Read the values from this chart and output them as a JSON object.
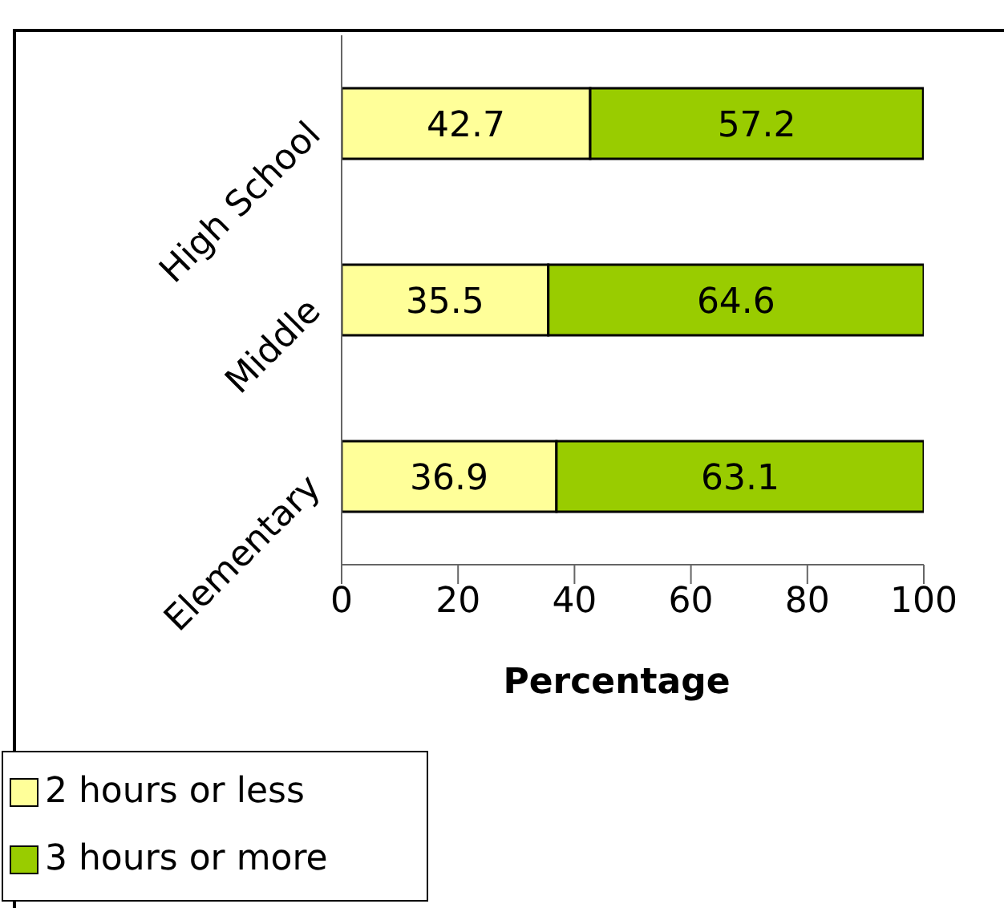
{
  "chart_data": {
    "type": "bar",
    "orientation": "horizontal",
    "stacked": true,
    "xlabel": "Percentage",
    "categories": [
      "High School",
      "Middle",
      "Elementary"
    ],
    "series": [
      {
        "name": "2 hours or less",
        "color": "#ffff99",
        "values": [
          42.7,
          35.5,
          36.9
        ]
      },
      {
        "name": "3 hours or more",
        "color": "#99cc00",
        "values": [
          57.2,
          64.6,
          63.1
        ]
      }
    ],
    "xlim": [
      0,
      100
    ],
    "xticks": [
      0,
      20,
      40,
      60,
      80,
      100
    ],
    "data_labels": true,
    "grid": false,
    "legend": "bottom left"
  }
}
